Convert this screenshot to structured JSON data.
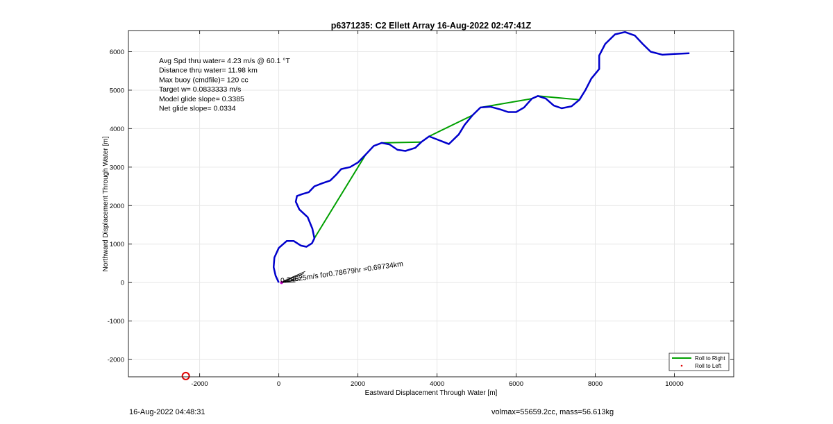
{
  "footer": {
    "date": "16-Aug-2022 04:48:31",
    "vol_mass": "volmax=55659.2cc, mass=56.613kg"
  },
  "chart_data": {
    "type": "line",
    "title": "p6371235: C2 Ellett Array 16-Aug-2022 02:47:41Z",
    "xlabel": "Eastward Displacement Through Water [m]",
    "ylabel": "Northward Displacement Through Water [m]",
    "xlim": [
      -3800,
      11500
    ],
    "ylim": [
      -2450,
      6550
    ],
    "xticks": [
      -2000,
      0,
      2000,
      4000,
      6000,
      8000,
      10000
    ],
    "yticks": [
      -2000,
      -1000,
      0,
      1000,
      2000,
      3000,
      4000,
      5000,
      6000
    ],
    "grid": true,
    "legend_position": "bottom-right",
    "legend": [
      {
        "label": "Roll to Right",
        "color": "#00a000",
        "style": "line"
      },
      {
        "label": "Roll to Left",
        "color": "#e00000",
        "style": "dot"
      }
    ],
    "stats": [
      "Avg Spd thru water=  4.23 m/s @  60.1 °T",
      "Distance thru water= 11.98 km",
      "Max buoy (cmdfile)= 120 cc",
      "Target w= 0.0833333 m/s",
      "Model glide slope= 0.3385",
      "Net glide slope= 0.0334"
    ],
    "annotation": "0.24625m/s for0.78679hr =0.69734km",
    "series": [
      {
        "color": "#0000cc",
        "points": [
          [
            0,
            0
          ],
          [
            -80,
            180
          ],
          [
            -130,
            400
          ],
          [
            -110,
            650
          ],
          [
            0,
            900
          ],
          [
            200,
            1080
          ],
          [
            380,
            1080
          ],
          [
            560,
            960
          ],
          [
            700,
            930
          ],
          [
            840,
            1020
          ],
          [
            900,
            1150
          ],
          [
            850,
            1400
          ],
          [
            730,
            1700
          ],
          [
            520,
            1900
          ],
          [
            430,
            2100
          ],
          [
            460,
            2250
          ],
          [
            600,
            2300
          ],
          [
            760,
            2350
          ],
          [
            900,
            2500
          ],
          [
            1100,
            2580
          ],
          [
            1300,
            2650
          ],
          [
            1450,
            2800
          ],
          [
            1580,
            2950
          ],
          [
            1800,
            3000
          ],
          [
            2000,
            3120
          ],
          [
            2200,
            3330
          ],
          [
            2400,
            3550
          ],
          [
            2600,
            3630
          ],
          [
            2800,
            3590
          ],
          [
            3000,
            3450
          ],
          [
            3200,
            3420
          ],
          [
            3450,
            3500
          ],
          [
            3600,
            3650
          ],
          [
            3800,
            3800
          ],
          [
            4050,
            3700
          ],
          [
            4300,
            3600
          ],
          [
            4550,
            3850
          ],
          [
            4700,
            4100
          ],
          [
            4900,
            4350
          ],
          [
            5100,
            4550
          ],
          [
            5350,
            4570
          ],
          [
            5600,
            4500
          ],
          [
            5800,
            4430
          ],
          [
            6000,
            4430
          ],
          [
            6200,
            4550
          ],
          [
            6400,
            4780
          ],
          [
            6550,
            4850
          ],
          [
            6750,
            4780
          ],
          [
            6950,
            4600
          ],
          [
            7150,
            4530
          ],
          [
            7400,
            4580
          ],
          [
            7600,
            4750
          ],
          [
            7750,
            5000
          ],
          [
            7900,
            5300
          ],
          [
            8100,
            5550
          ],
          [
            8100,
            5900
          ],
          [
            8250,
            6200
          ],
          [
            8500,
            6450
          ],
          [
            8750,
            6510
          ],
          [
            9000,
            6420
          ],
          [
            9200,
            6200
          ],
          [
            9400,
            6000
          ],
          [
            9700,
            5920
          ],
          [
            10000,
            5940
          ],
          [
            10380,
            5960
          ]
        ]
      },
      {
        "color": "#00a000",
        "segments": [
          [
            [
              900,
              1150
            ],
            [
              2200,
              3330
            ]
          ],
          [
            [
              2600,
              3630
            ],
            [
              3600,
              3650
            ]
          ],
          [
            [
              3800,
              3800
            ],
            [
              4900,
              4350
            ]
          ],
          [
            [
              5100,
              4550
            ],
            [
              6400,
              4780
            ]
          ],
          [
            [
              6550,
              4850
            ],
            [
              7600,
              4750
            ]
          ]
        ]
      }
    ],
    "marker": {
      "x": -2350,
      "y": -2430,
      "color": "#e00000"
    }
  }
}
